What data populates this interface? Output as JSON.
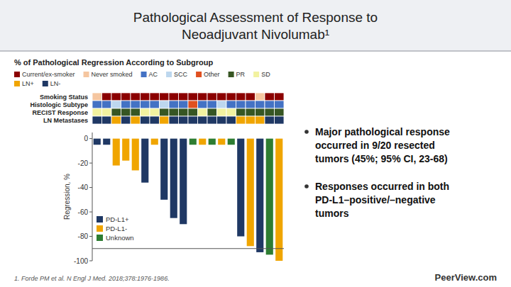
{
  "chart_data": [
    {
      "type": "bar",
      "title": [
        "Pathological Assessment of Response to",
        "Neoadjuvant Nivolumab¹"
      ],
      "subtitle": "% of Pathological Regression According to Subgroup",
      "y_label": "Regression, %",
      "categories": [
        null,
        null,
        null,
        null,
        null,
        null,
        null,
        null,
        null,
        null,
        null,
        null,
        null,
        null,
        null,
        null,
        null,
        null,
        null,
        null
      ],
      "series": [
        {
          "name": "PD-L1+",
          "color": "#1f3864",
          "values": [
            -5,
            -5,
            null,
            null,
            null,
            -36,
            null,
            -50,
            -65,
            -70,
            null,
            null,
            null,
            null,
            null,
            -80,
            null,
            -93,
            null,
            null
          ]
        },
        {
          "name": "PD-L1-",
          "color": "#f0a500",
          "values": [
            null,
            null,
            -22,
            -18,
            -26,
            null,
            -5,
            null,
            null,
            null,
            null,
            -5,
            null,
            -5,
            null,
            null,
            -88,
            null,
            null,
            -100
          ]
        },
        {
          "name": "Unknown",
          "color": "#2e7d32",
          "values": [
            null,
            null,
            null,
            null,
            null,
            null,
            null,
            null,
            null,
            null,
            -5,
            null,
            -5,
            null,
            -5,
            null,
            null,
            null,
            -95,
            null
          ]
        }
      ],
      "ylim": [
        -100,
        5
      ],
      "yticks": [
        0,
        -20,
        -40,
        -60,
        -80,
        -100
      ],
      "reference_line": -90,
      "grid": false,
      "legend": "lower left",
      "tick_labels": "y",
      "annotations": [
        [
          "Major pathological response",
          "occurred in 9/20 resected",
          "tumors (45%; 95% CI, 23-68)"
        ],
        [
          "Responses occurred in both",
          "PD-L1–positive/–negative",
          "tumors"
        ]
      ],
      "footnote": "1. Forde PM et al. N Engl J Med. 2018;378:1976-1986.",
      "source": "PeerView.com"
    },
    {
      "type": "heatmap",
      "rows": [
        "Smoking Status",
        "Histologic Subtype",
        "RECIST Response",
        "LN Metastases"
      ],
      "series": [
        {
          "name": "Current/ex-smoker",
          "color": "#8B0000"
        },
        {
          "name": "Never smoked",
          "color": "#f5c6a0"
        },
        {
          "name": "AC",
          "color": "#4472c4"
        },
        {
          "name": "SCC",
          "color": "#bdd7ee"
        },
        {
          "name": "Other",
          "color": "#e05020"
        },
        {
          "name": "PR",
          "color": "#375623"
        },
        {
          "name": "SD",
          "color": "#f2f2a0"
        },
        {
          "name": "LN+",
          "color": "#f0a500"
        },
        {
          "name": "LN-",
          "color": "#1f3864"
        }
      ],
      "cells": [
        [
          "Never smoked",
          "Current/ex-smoker",
          "Current/ex-smoker",
          "Current/ex-smoker",
          "Current/ex-smoker",
          "Current/ex-smoker",
          "Current/ex-smoker",
          "Current/ex-smoker",
          "Current/ex-smoker",
          "Current/ex-smoker",
          "Current/ex-smoker",
          "Current/ex-smoker",
          "Current/ex-smoker",
          "Current/ex-smoker",
          "Current/ex-smoker",
          "Current/ex-smoker",
          "Current/ex-smoker",
          "Never smoked",
          "Current/ex-smoker",
          "Current/ex-smoker"
        ],
        [
          "AC",
          "AC",
          "SCC",
          "AC",
          "AC",
          "AC",
          "AC",
          "SCC",
          "AC",
          "AC",
          "Other",
          "AC",
          "AC",
          "SCC",
          "AC",
          "AC",
          "AC",
          "AC",
          "AC",
          "AC"
        ],
        [
          "SD",
          "SD",
          "PR",
          "PR",
          "PR",
          "SD",
          "SD",
          "PR",
          "PR",
          "PR",
          "PR",
          "SD",
          "PR",
          "SD",
          "SD",
          "PR",
          "PR",
          "PR",
          "PR",
          "PR"
        ],
        [
          "LN-",
          "LN-",
          "LN+",
          "LN-",
          "LN+",
          "LN-",
          "LN-",
          "LN+",
          "LN-",
          "LN-",
          "LN-",
          "LN-",
          "LN-",
          "LN-",
          "LN-",
          "LN+",
          "LN+",
          "LN+",
          "LN-",
          "LN-"
        ]
      ]
    }
  ]
}
